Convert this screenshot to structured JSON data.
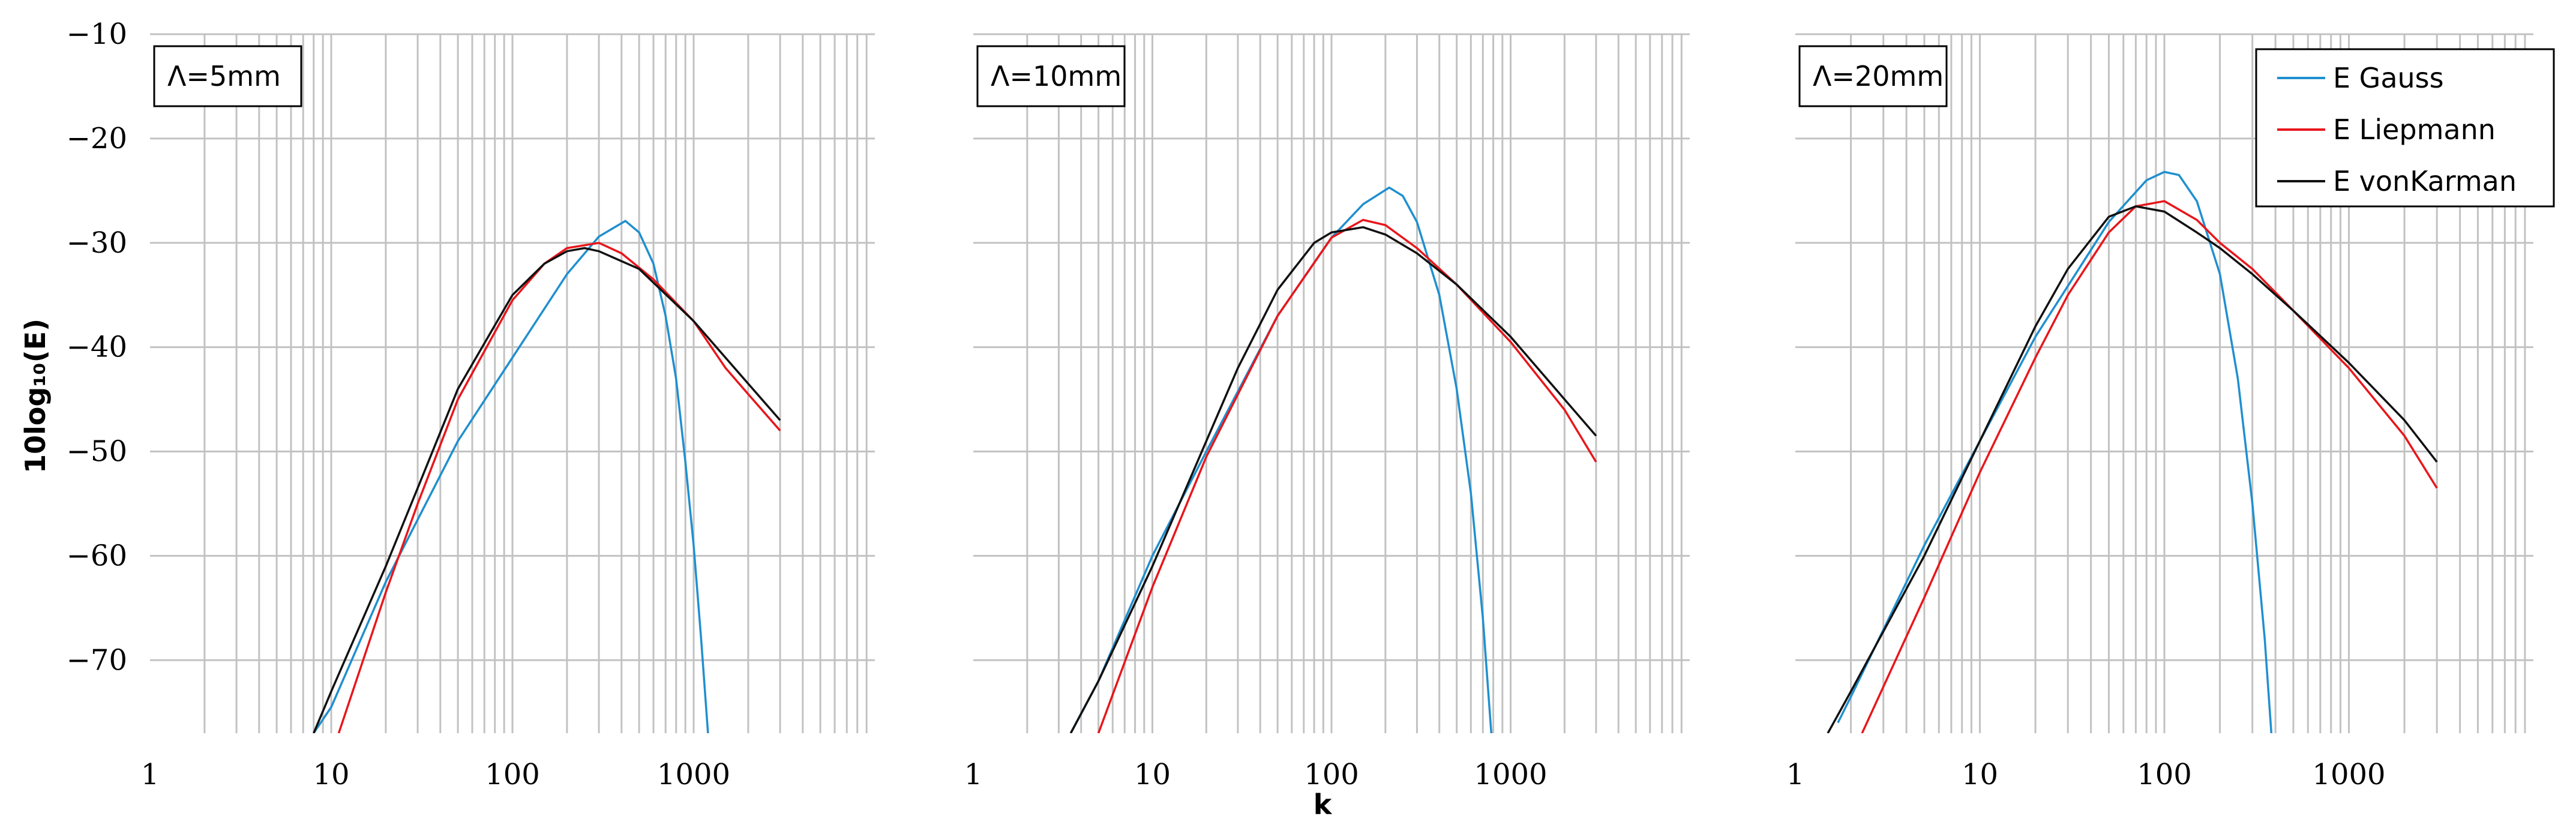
{
  "colors": {
    "gauss": "#1f8fcf",
    "liepmann": "#e8161b",
    "vonkarman": "#111111",
    "grid": "#c2c2c2",
    "frame": "#000000"
  },
  "chart_data": {
    "type": "line",
    "x_scale": "log",
    "xlabel": "k",
    "ylabel": "10log₁₀(E)",
    "xlim": [
      1,
      10000
    ],
    "ylim": [
      -77,
      -10
    ],
    "x_ticks": [
      1,
      10,
      100,
      1000
    ],
    "x_tick_labels": [
      "1",
      "10",
      "100",
      "1000"
    ],
    "y_ticks": [
      -10,
      -20,
      -30,
      -40,
      -50,
      -60,
      -70
    ],
    "y_tick_labels": [
      "−10",
      "−20",
      "−30",
      "−40",
      "−50",
      "−60",
      "−70"
    ],
    "grid": true,
    "legend_position": "top-right of third panel",
    "legend": [
      "E Gauss",
      "E Liepmann",
      "E vonKarman"
    ],
    "panels": [
      {
        "label": "Λ=5mm",
        "series": [
          {
            "name": "E Gauss",
            "x": [
              8,
              10,
              20,
              50,
              100,
              200,
              300,
              420,
              500,
              600,
              700,
              800,
              900,
              1000,
              1100,
              1200
            ],
            "y": [
              -77,
              -74.5,
              -62.5,
              -49,
              -41,
              -33,
              -29.4,
              -27.9,
              -29,
              -32,
              -37,
              -43,
              -51,
              -59,
              -68,
              -77
            ]
          },
          {
            "name": "E Liepmann",
            "x": [
              11,
              20,
              30,
              50,
              100,
              150,
              200,
              300,
              400,
              600,
              1000,
              1500,
              2000,
              3000
            ],
            "y": [
              -77,
              -63.5,
              -55,
              -45,
              -35.5,
              -32,
              -30.5,
              -30,
              -31,
              -33.5,
              -37.5,
              -42,
              -44.5,
              -48
            ]
          },
          {
            "name": "E vonKarman",
            "x": [
              8,
              10,
              20,
              30,
              50,
              100,
              150,
              200,
              250,
              300,
              500,
              1000,
              2000,
              3000
            ],
            "y": [
              -77,
              -73,
              -61,
              -53.5,
              -44,
              -35,
              -32,
              -30.8,
              -30.5,
              -30.8,
              -32.5,
              -37.5,
              -43.5,
              -47
            ]
          }
        ]
      },
      {
        "label": "Λ=10mm",
        "series": [
          {
            "name": "E Gauss",
            "x": [
              3.5,
              5,
              10,
              20,
              50,
              100,
              150,
              210,
              250,
              300,
              400,
              500,
              600,
              700,
              780
            ],
            "y": [
              -77,
              -72,
              -60,
              -50,
              -37,
              -29.5,
              -26.3,
              -24.7,
              -25.5,
              -28,
              -35,
              -44,
              -54,
              -66,
              -77
            ]
          },
          {
            "name": "E Liepmann",
            "x": [
              5,
              10,
              20,
              50,
              100,
              150,
              200,
              300,
              500,
              1000,
              2000,
              3000
            ],
            "y": [
              -77,
              -63,
              -50.5,
              -37,
              -29.5,
              -27.8,
              -28.3,
              -30.5,
              -34,
              -39.5,
              -46,
              -51
            ]
          },
          {
            "name": "E vonKarman",
            "x": [
              3.5,
              5,
              10,
              20,
              30,
              50,
              80,
              100,
              150,
              200,
              300,
              500,
              1000,
              2000,
              3000
            ],
            "y": [
              -77,
              -72,
              -61,
              -49,
              -42,
              -34.5,
              -30,
              -29,
              -28.5,
              -29.2,
              -31,
              -34,
              -39,
              -45,
              -48.5
            ]
          }
        ]
      },
      {
        "label": "Λ=20mm",
        "series": [
          {
            "name": "E Gauss",
            "x": [
              1.7,
              2,
              5,
              10,
              20,
              50,
              80,
              100,
              120,
              150,
              200,
              250,
              300,
              350,
              380
            ],
            "y": [
              -76,
              -73.5,
              -59,
              -49,
              -39,
              -28,
              -24,
              -23.2,
              -23.5,
              -26,
              -33,
              -43,
              -55,
              -68,
              -77
            ]
          },
          {
            "name": "E Liepmann",
            "x": [
              2.3,
              5,
              10,
              20,
              30,
              50,
              70,
              100,
              150,
              200,
              300,
              500,
              1000,
              2000,
              3000
            ],
            "y": [
              -77,
              -64,
              -52,
              -41,
              -35,
              -29,
              -26.5,
              -26,
              -27.8,
              -30,
              -32.5,
              -36.5,
              -42,
              -48.5,
              -53.5
            ]
          },
          {
            "name": "E vonKarman",
            "x": [
              1.5,
              2,
              5,
              10,
              20,
              30,
              50,
              70,
              100,
              150,
              200,
              300,
              500,
              1000,
              2000,
              3000
            ],
            "y": [
              -77,
              -73,
              -60,
              -49,
              -38,
              -32.5,
              -27.5,
              -26.5,
              -27,
              -29,
              -30.5,
              -33,
              -36.5,
              -41.5,
              -47,
              -51
            ]
          }
        ]
      }
    ]
  }
}
